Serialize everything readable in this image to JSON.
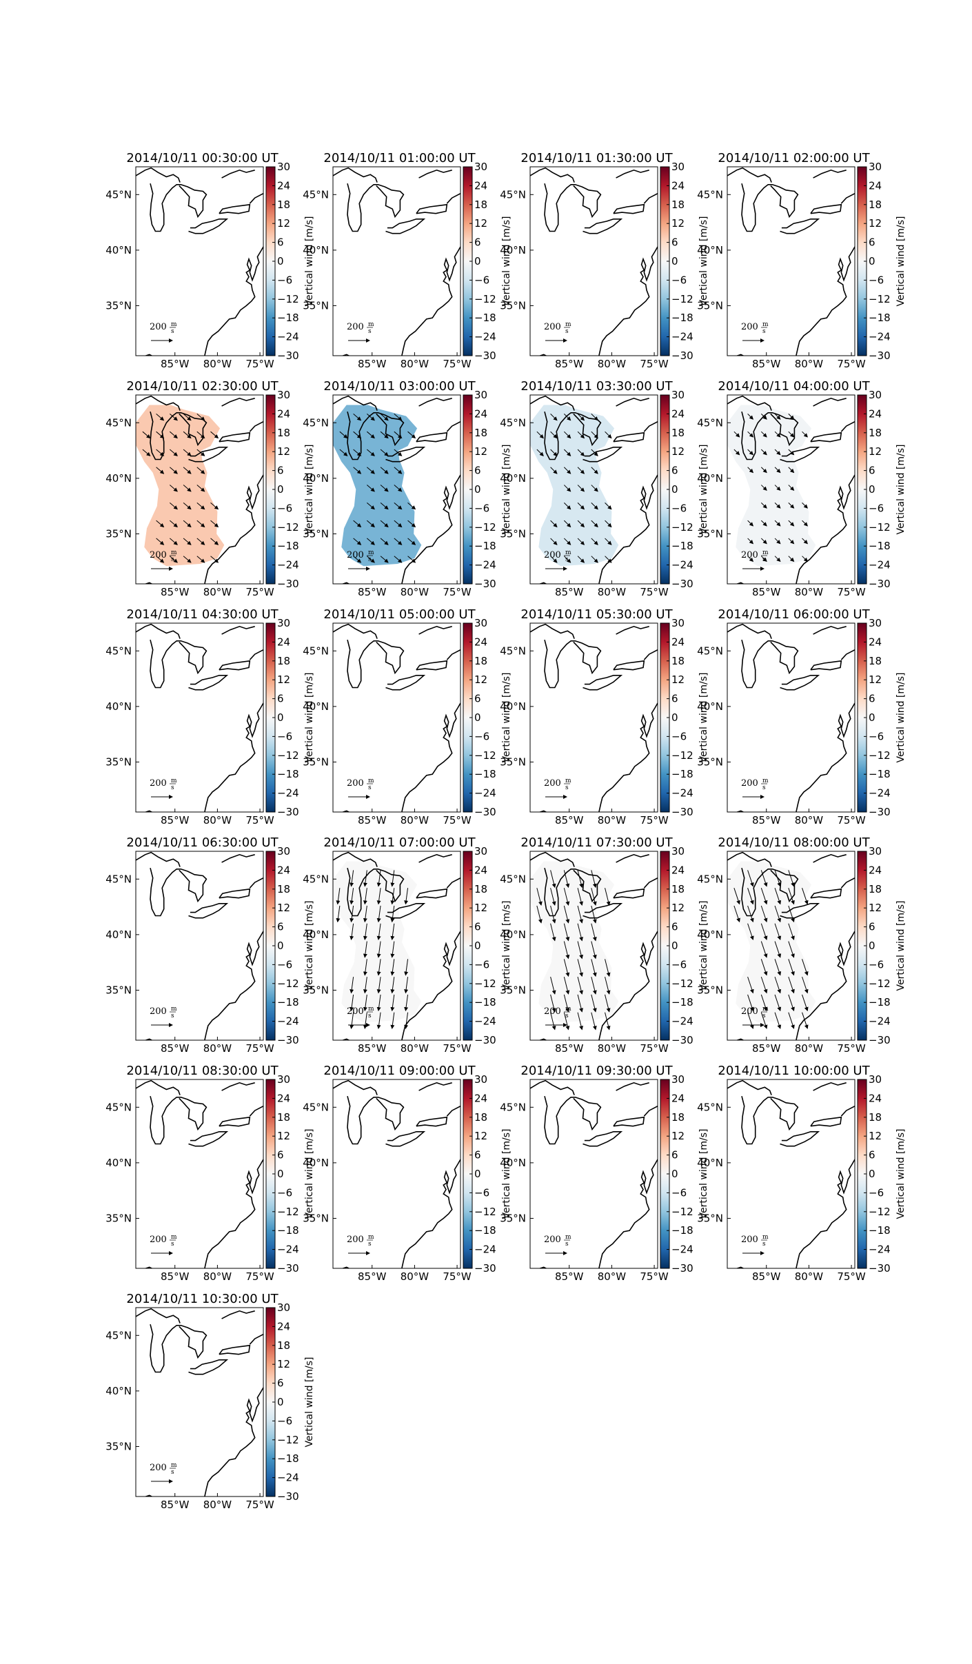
{
  "chart_data": {
    "type": "map_grid",
    "panels": [
      {
        "title": "2014/10/11 00:30:00 UT",
        "vertical_wind": null,
        "wind_u": null,
        "wind_v": null
      },
      {
        "title": "2014/10/11 01:00:00 UT",
        "vertical_wind": null,
        "wind_u": null,
        "wind_v": null
      },
      {
        "title": "2014/10/11 01:30:00 UT",
        "vertical_wind": null,
        "wind_u": null,
        "wind_v": null
      },
      {
        "title": "2014/10/11 02:00:00 UT",
        "vertical_wind": null,
        "wind_u": null,
        "wind_v": null
      },
      {
        "title": "2014/10/11 02:30:00 UT",
        "vertical_wind": 8,
        "wind_u": 70,
        "wind_v": -60
      },
      {
        "title": "2014/10/11 03:00:00 UT",
        "vertical_wind": -14,
        "wind_u": 70,
        "wind_v": -60
      },
      {
        "title": "2014/10/11 03:30:00 UT",
        "vertical_wind": -5,
        "wind_u": 60,
        "wind_v": -60
      },
      {
        "title": "2014/10/11 04:00:00 UT",
        "vertical_wind": -1,
        "wind_u": 50,
        "wind_v": -50
      },
      {
        "title": "2014/10/11 04:30:00 UT",
        "vertical_wind": null,
        "wind_u": null,
        "wind_v": null
      },
      {
        "title": "2014/10/11 05:00:00 UT",
        "vertical_wind": null,
        "wind_u": null,
        "wind_v": null
      },
      {
        "title": "2014/10/11 05:30:00 UT",
        "vertical_wind": null,
        "wind_u": null,
        "wind_v": null
      },
      {
        "title": "2014/10/11 06:00:00 UT",
        "vertical_wind": null,
        "wind_u": null,
        "wind_v": null
      },
      {
        "title": "2014/10/11 06:30:00 UT",
        "vertical_wind": null,
        "wind_u": null,
        "wind_v": null
      },
      {
        "title": "2014/10/11 07:00:00 UT",
        "vertical_wind": 0,
        "wind_u": -20,
        "wind_v": -150
      },
      {
        "title": "2014/10/11 07:30:00 UT",
        "vertical_wind": 0,
        "wind_u": 40,
        "wind_v": -160
      },
      {
        "title": "2014/10/11 08:00:00 UT",
        "vertical_wind": 0,
        "wind_u": 50,
        "wind_v": -150
      },
      {
        "title": "2014/10/11 08:30:00 UT",
        "vertical_wind": null,
        "wind_u": null,
        "wind_v": null
      },
      {
        "title": "2014/10/11 09:00:00 UT",
        "vertical_wind": null,
        "wind_u": null,
        "wind_v": null
      },
      {
        "title": "2014/10/11 09:30:00 UT",
        "vertical_wind": null,
        "wind_u": null,
        "wind_v": null
      },
      {
        "title": "2014/10/11 10:00:00 UT",
        "vertical_wind": null,
        "wind_u": null,
        "wind_v": null
      },
      {
        "title": "2014/10/11 10:30:00 UT",
        "vertical_wind": null,
        "wind_u": null,
        "wind_v": null
      }
    ],
    "xlim": [
      -89.6,
      -74.6
    ],
    "ylim": [
      30.5,
      47.5
    ],
    "xticks": [
      {
        "value": -85,
        "label": "85°W"
      },
      {
        "value": -80,
        "label": "80°W"
      },
      {
        "value": -75,
        "label": "75°W"
      }
    ],
    "yticks": [
      {
        "value": 35,
        "label": "35°N"
      },
      {
        "value": 40,
        "label": "40°N"
      },
      {
        "value": 45,
        "label": "45°N"
      }
    ],
    "colorbar": {
      "label": "Vertical wind [m/s]",
      "lim": [
        -30,
        30
      ],
      "ticks": [
        {
          "value": -30,
          "label": "−30"
        },
        {
          "value": -24,
          "label": "−24"
        },
        {
          "value": -18,
          "label": "−18"
        },
        {
          "value": -12,
          "label": "−12"
        },
        {
          "value": -6,
          "label": "−6"
        },
        0,
        6,
        12,
        18,
        24,
        30
      ],
      "colors": [
        "#053061",
        "#2166ac",
        "#4393c3",
        "#92c5de",
        "#d1e5f0",
        "#f7f7f7",
        "#fddbc7",
        "#f4a582",
        "#d6604d",
        "#b2182b",
        "#67001f"
      ]
    },
    "quiver_key": 200,
    "quiver_units_num": "m",
    "quiver_units_den": "s"
  }
}
